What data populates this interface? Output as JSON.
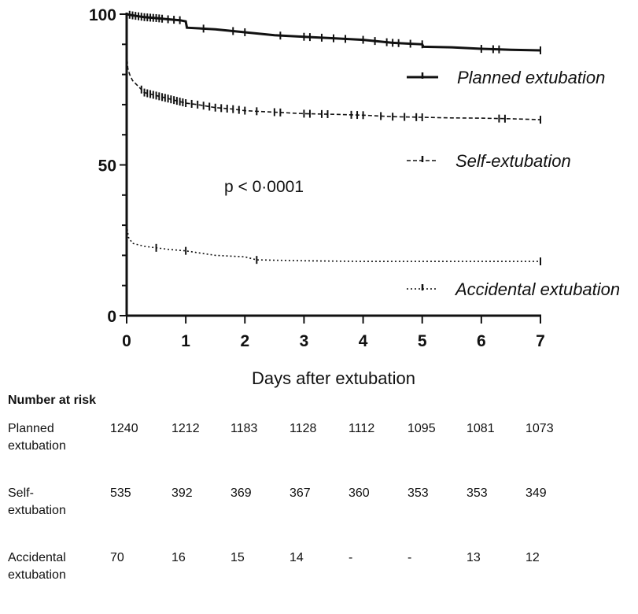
{
  "chart_data": {
    "type": "line",
    "xlabel": "Days after extubation",
    "ylabel": "",
    "xlim": [
      0,
      7
    ],
    "ylim": [
      0,
      100
    ],
    "xticks": [
      "0",
      "1",
      "2",
      "3",
      "4",
      "5",
      "6",
      "7"
    ],
    "yticks": [
      "0",
      "50",
      "100"
    ],
    "annotation": "p < 0·0001",
    "grid": false,
    "legend_position": "right",
    "series": [
      {
        "name": "Planned extubation",
        "style": "solid",
        "color": "#111111",
        "points": [
          [
            0,
            100
          ],
          [
            0.05,
            99.8
          ],
          [
            0.1,
            99.6
          ],
          [
            0.2,
            99.3
          ],
          [
            0.3,
            99
          ],
          [
            0.5,
            98.7
          ],
          [
            0.7,
            98.3
          ],
          [
            0.9,
            98
          ],
          [
            1.0,
            97.6
          ],
          [
            1.02,
            95.5
          ],
          [
            1.5,
            95
          ],
          [
            2.0,
            94
          ],
          [
            2.5,
            93
          ],
          [
            3.0,
            92.5
          ],
          [
            3.5,
            92
          ],
          [
            4.0,
            91.5
          ],
          [
            4.5,
            90.5
          ],
          [
            5.0,
            90
          ],
          [
            5.02,
            89.2
          ],
          [
            5.5,
            89
          ],
          [
            6.0,
            88.5
          ],
          [
            6.5,
            88.2
          ],
          [
            7.0,
            88
          ]
        ],
        "censor_x": [
          0.05,
          0.1,
          0.15,
          0.2,
          0.25,
          0.3,
          0.35,
          0.4,
          0.45,
          0.5,
          0.55,
          0.6,
          0.7,
          0.8,
          0.9,
          1.3,
          1.8,
          2.0,
          2.6,
          3.0,
          3.1,
          3.3,
          3.5,
          3.7,
          4.0,
          4.2,
          4.4,
          4.5,
          4.6,
          4.8,
          5.0,
          6.0,
          6.2,
          6.3,
          7.0
        ]
      },
      {
        "name": "Self-extubation",
        "style": "dashed",
        "color": "#111111",
        "points": [
          [
            0,
            87
          ],
          [
            0.02,
            82
          ],
          [
            0.05,
            80
          ],
          [
            0.1,
            78
          ],
          [
            0.2,
            76
          ],
          [
            0.3,
            74
          ],
          [
            0.5,
            73
          ],
          [
            0.7,
            72
          ],
          [
            0.9,
            71
          ],
          [
            1.0,
            70.5
          ],
          [
            1.2,
            70
          ],
          [
            1.5,
            69
          ],
          [
            1.8,
            68.5
          ],
          [
            2.0,
            68
          ],
          [
            2.5,
            67.5
          ],
          [
            3.0,
            67
          ],
          [
            3.5,
            66.8
          ],
          [
            4.0,
            66.5
          ],
          [
            4.5,
            66
          ],
          [
            5.0,
            65.8
          ],
          [
            5.5,
            65.6
          ],
          [
            6.0,
            65.5
          ],
          [
            6.5,
            65.3
          ],
          [
            7.0,
            65
          ]
        ],
        "censor_x": [
          0.25,
          0.3,
          0.35,
          0.4,
          0.45,
          0.5,
          0.55,
          0.6,
          0.65,
          0.7,
          0.75,
          0.8,
          0.85,
          0.9,
          0.95,
          1.0,
          1.1,
          1.2,
          1.3,
          1.4,
          1.5,
          1.6,
          1.7,
          1.8,
          1.9,
          2.0,
          2.2,
          2.5,
          2.6,
          3.0,
          3.1,
          3.3,
          3.4,
          3.8,
          3.9,
          4.0,
          4.3,
          4.5,
          4.7,
          4.9,
          5.0,
          6.3,
          6.4,
          7.0
        ]
      },
      {
        "name": "Accidental extubation",
        "style": "dotted",
        "color": "#111111",
        "points": [
          [
            0,
            30
          ],
          [
            0.03,
            26
          ],
          [
            0.1,
            24
          ],
          [
            0.3,
            23
          ],
          [
            0.5,
            22.5
          ],
          [
            0.7,
            22
          ],
          [
            1.0,
            21.5
          ],
          [
            1.5,
            20
          ],
          [
            2.0,
            19.5
          ],
          [
            2.2,
            18.5
          ],
          [
            3.0,
            18.2
          ],
          [
            4.0,
            18
          ],
          [
            5.0,
            18
          ],
          [
            6.0,
            18
          ],
          [
            7.0,
            18
          ]
        ],
        "censor_x": [
          0.5,
          1.0,
          2.2,
          7.0
        ]
      }
    ],
    "number_at_risk": {
      "title": "Number at risk",
      "rows": [
        {
          "label_lines": [
            "Planned",
            "extubation"
          ],
          "values": [
            "1240",
            "1212",
            "1183",
            "1128",
            "1112",
            "1095",
            "1081",
            "1073"
          ]
        },
        {
          "label_lines": [
            "Self-",
            "extubation"
          ],
          "values": [
            "535",
            "392",
            "369",
            "367",
            "360",
            "353",
            "353",
            "349"
          ]
        },
        {
          "label_lines": [
            "Accidental",
            "extubation"
          ],
          "values": [
            "70",
            "16",
            "15",
            "14",
            "-",
            "-",
            "13",
            "12"
          ]
        }
      ]
    }
  }
}
